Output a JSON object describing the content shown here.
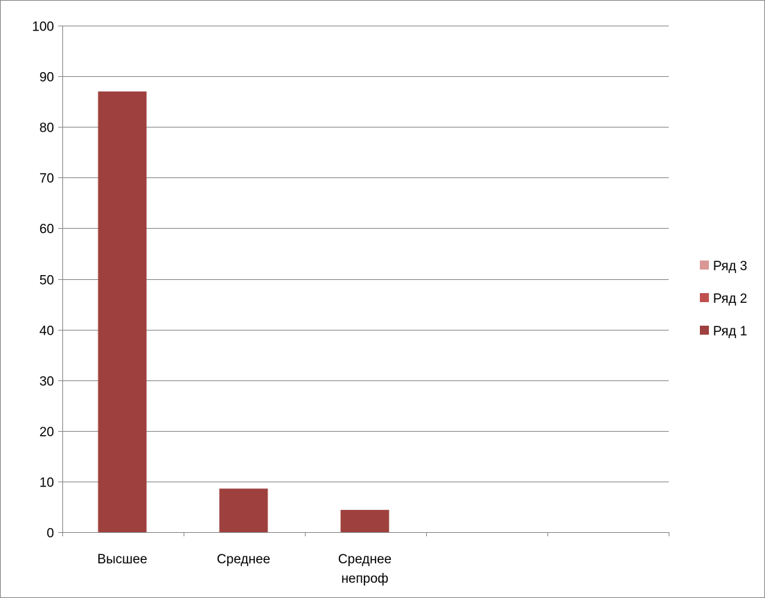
{
  "chart_data": {
    "type": "bar",
    "categories": [
      [
        "Высшее"
      ],
      [
        "Среднее"
      ],
      [
        "Среднее",
        "непроф"
      ],
      [
        ""
      ],
      [
        ""
      ]
    ],
    "series": [
      {
        "name": "Ряд 1",
        "color": "#9e413e",
        "values": [
          87,
          8.6,
          4.4,
          null,
          null
        ]
      },
      {
        "name": "Ряд 2",
        "color": "#c0504d",
        "values": [
          null,
          null,
          null,
          null,
          null
        ]
      },
      {
        "name": "Ряд 3",
        "color": "#d99795",
        "values": [
          null,
          null,
          null,
          null,
          null
        ]
      }
    ],
    "ylim": [
      0,
      100
    ],
    "yticks": [
      0,
      10,
      20,
      30,
      40,
      50,
      60,
      70,
      80,
      90,
      100
    ],
    "grid": true,
    "legend": "right",
    "legend_order": [
      "Ряд 3",
      "Ряд 2",
      "Ряд 1"
    ]
  }
}
